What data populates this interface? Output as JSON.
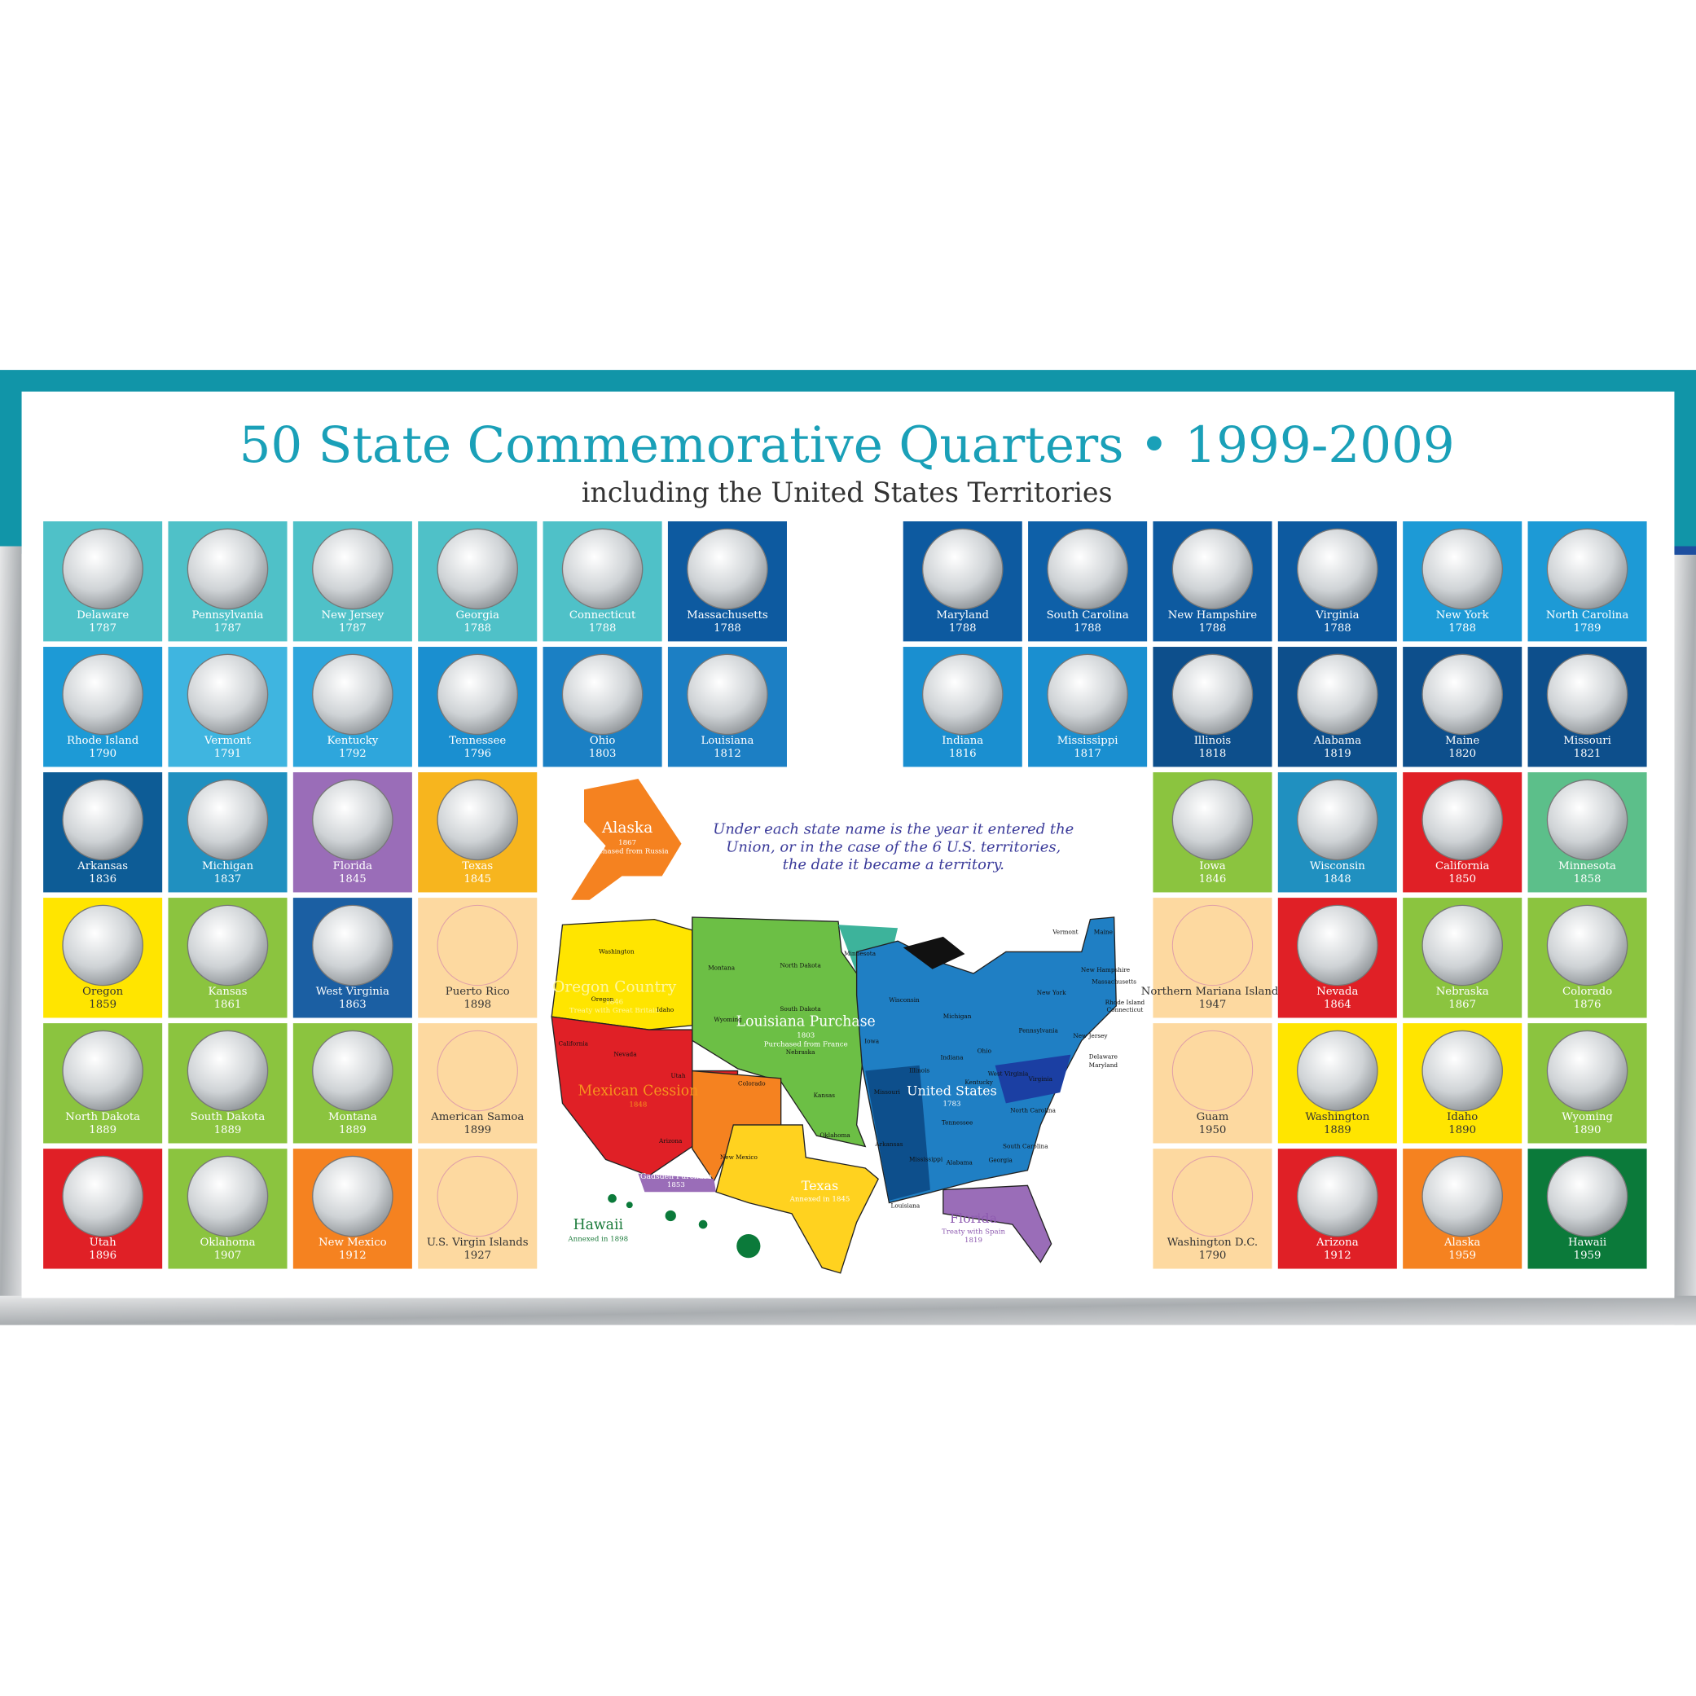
{
  "header": {
    "title": "50 State Commemorative Quarters • 1999-2009",
    "subtitle": "including the United States Territories"
  },
  "left_tiles": [
    {
      "name": "Delaware",
      "year": "1787",
      "color": "#4fc1c8",
      "coin": true
    },
    {
      "name": "Pennsylvania",
      "year": "1787",
      "color": "#4fc1c8",
      "coin": true
    },
    {
      "name": "New Jersey",
      "year": "1787",
      "color": "#4fc1c8",
      "coin": true
    },
    {
      "name": "Georgia",
      "year": "1788",
      "color": "#4fc1c8",
      "coin": true
    },
    {
      "name": "Connecticut",
      "year": "1788",
      "color": "#4fc1c8",
      "coin": true
    },
    {
      "name": "Massachusetts",
      "year": "1788",
      "color": "#0d5aa0",
      "coin": true
    },
    {
      "name": "Rhode Island",
      "year": "1790",
      "color": "#1d9ad6",
      "coin": true
    },
    {
      "name": "Vermont",
      "year": "1791",
      "color": "#3fb5e0",
      "coin": true
    },
    {
      "name": "Kentucky",
      "year": "1792",
      "color": "#2ea6dc",
      "coin": true
    },
    {
      "name": "Tennessee",
      "year": "1796",
      "color": "#1a8fd0",
      "coin": true
    },
    {
      "name": "Ohio",
      "year": "1803",
      "color": "#1b80c4",
      "coin": true
    },
    {
      "name": "Louisiana",
      "year": "1812",
      "color": "#1c7fc4",
      "coin": true
    },
    {
      "name": "Arkansas",
      "year": "1836",
      "color": "#0d5c96",
      "coin": true
    },
    {
      "name": "Michigan",
      "year": "1837",
      "color": "#2090c0",
      "coin": true
    },
    {
      "name": "Florida",
      "year": "1845",
      "color": "#9a6db8",
      "coin": true
    },
    {
      "name": "Texas",
      "year": "1845",
      "color": "#f7b51e",
      "coin": true
    },
    {
      "name": "Oregon",
      "year": "1859",
      "color": "#ffe500",
      "coin": true
    },
    {
      "name": "Kansas",
      "year": "1861",
      "color": "#8bc43f",
      "coin": true
    },
    {
      "name": "West Virginia",
      "year": "1863",
      "color": "#1b5fa3",
      "coin": true
    },
    {
      "name": "Puerto Rico",
      "year": "1898",
      "color": "#fdd9a0",
      "coin": false
    },
    {
      "name": "North Dakota",
      "year": "1889",
      "color": "#8bc43f",
      "coin": true
    },
    {
      "name": "South Dakota",
      "year": "1889",
      "color": "#8bc43f",
      "coin": true
    },
    {
      "name": "Montana",
      "year": "1889",
      "color": "#8bc43f",
      "coin": true
    },
    {
      "name": "American Samoa",
      "year": "1899",
      "color": "#fdd9a0",
      "coin": false
    },
    {
      "name": "Utah",
      "year": "1896",
      "color": "#e02026",
      "coin": true
    },
    {
      "name": "Oklahoma",
      "year": "1907",
      "color": "#8bc43f",
      "coin": true
    },
    {
      "name": "New Mexico",
      "year": "1912",
      "color": "#f58220",
      "coin": true
    },
    {
      "name": "U.S. Virgin Islands",
      "year": "1927",
      "color": "#fdd9a0",
      "coin": false
    }
  ],
  "right_tiles": [
    {
      "name": "Maryland",
      "year": "1788",
      "color": "#0d5aa0",
      "coin": true
    },
    {
      "name": "South Carolina",
      "year": "1788",
      "color": "#0e60a8",
      "coin": true
    },
    {
      "name": "New Hampshire",
      "year": "1788",
      "color": "#0d5aa0",
      "coin": true
    },
    {
      "name": "Virginia",
      "year": "1788",
      "color": "#0d5aa0",
      "coin": true
    },
    {
      "name": "New York",
      "year": "1788",
      "color": "#1d9ad6",
      "coin": true
    },
    {
      "name": "North Carolina",
      "year": "1789",
      "color": "#1d9ad6",
      "coin": true
    },
    {
      "name": "Indiana",
      "year": "1816",
      "color": "#1a8fd0",
      "coin": true
    },
    {
      "name": "Mississippi",
      "year": "1817",
      "color": "#1a8fd0",
      "coin": true
    },
    {
      "name": "Illinois",
      "year": "1818",
      "color": "#0d4f8c",
      "coin": true
    },
    {
      "name": "Alabama",
      "year": "1819",
      "color": "#0d4f8c",
      "coin": true
    },
    {
      "name": "Maine",
      "year": "1820",
      "color": "#0d4f8c",
      "coin": true
    },
    {
      "name": "Missouri",
      "year": "1821",
      "color": "#0d4f8c",
      "coin": true
    },
    {
      "name": "Iowa",
      "year": "1846",
      "color": "#8bc43f",
      "coin": true
    },
    {
      "name": "Wisconsin",
      "year": "1848",
      "color": "#2090c0",
      "coin": true
    },
    {
      "name": "California",
      "year": "1850",
      "color": "#e02026",
      "coin": true
    },
    {
      "name": "Minnesota",
      "year": "1858",
      "color": "#5cbf8a",
      "coin": true
    },
    {
      "name": "Northern Mariana Islands",
      "year": "1947",
      "color": "#fdd9a0",
      "coin": false
    },
    {
      "name": "Nevada",
      "year": "1864",
      "color": "#e02026",
      "coin": true
    },
    {
      "name": "Nebraska",
      "year": "1867",
      "color": "#8bc43f",
      "coin": true
    },
    {
      "name": "Colorado",
      "year": "1876",
      "color": "#8bc43f",
      "coin": true
    },
    {
      "name": "Guam",
      "year": "1950",
      "color": "#fdd9a0",
      "coin": false
    },
    {
      "name": "Washington",
      "year": "1889",
      "color": "#ffe500",
      "coin": true
    },
    {
      "name": "Idaho",
      "year": "1890",
      "color": "#ffe500",
      "coin": true
    },
    {
      "name": "Wyoming",
      "year": "1890",
      "color": "#8bc43f",
      "coin": true
    },
    {
      "name": "Washington D.C.",
      "year": "1790",
      "color": "#fdd9a0",
      "coin": false
    },
    {
      "name": "Arizona",
      "year": "1912",
      "color": "#e02026",
      "coin": true
    },
    {
      "name": "Alaska",
      "year": "1959",
      "color": "#f58220",
      "coin": true
    },
    {
      "name": "Hawaii",
      "year": "1959",
      "color": "#0b7a3a",
      "coin": true
    }
  ],
  "map": {
    "note": [
      "Under each state name is the year it entered the",
      "Union, or in the case of the 6 U.S. territories,",
      "the date it became a territory."
    ],
    "regions": [
      {
        "name": "Alaska",
        "lines": [
          "1867",
          "Purchased from Russia"
        ]
      },
      {
        "name": "Oregon Country",
        "lines": [
          "1846",
          "Treaty with Great Britain"
        ]
      },
      {
        "name": "Louisiana Purchase",
        "lines": [
          "1803",
          "Purchased from France"
        ]
      },
      {
        "name": "Mexican Cession",
        "lines": [
          "1848"
        ]
      },
      {
        "name": "Gadsden Purchase",
        "lines": [
          "1853"
        ]
      },
      {
        "name": "Texas",
        "lines": [
          "Annexed in 1845"
        ]
      },
      {
        "name": "United States",
        "lines": [
          "1783"
        ]
      },
      {
        "name": "Florida",
        "lines": [
          "Treaty with Spain",
          "1819"
        ]
      },
      {
        "name": "Hawaii",
        "lines": [
          "Annexed in 1898"
        ]
      }
    ],
    "states": [
      "Washington",
      "Oregon",
      "California",
      "Nevada",
      "Idaho",
      "Montana",
      "Wyoming",
      "Utah",
      "Arizona",
      "Colorado",
      "New Mexico",
      "North Dakota",
      "South Dakota",
      "Nebraska",
      "Kansas",
      "Oklahoma",
      "Minnesota",
      "Iowa",
      "Missouri",
      "Arkansas",
      "Louisiana",
      "Wisconsin",
      "Illinois",
      "Michigan",
      "Indiana",
      "Ohio",
      "Kentucky",
      "Tennessee",
      "Mississippi",
      "Alabama",
      "Georgia",
      "South Carolina",
      "North Carolina",
      "Virginia",
      "West Virginia",
      "Pennsylvania",
      "New York",
      "Vermont",
      "Maine",
      "New Hampshire",
      "Massachusetts",
      "Rhode Island",
      "Connecticut",
      "New Jersey",
      "Delaware",
      "Maryland"
    ]
  }
}
